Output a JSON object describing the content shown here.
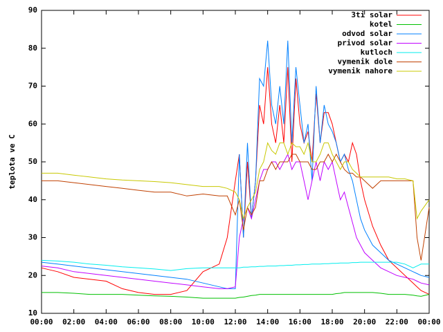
{
  "chart_data": {
    "type": "line",
    "ylabel": "teplota ve C",
    "x": [
      0,
      1,
      2,
      3,
      4,
      5,
      6,
      7,
      8,
      9,
      10,
      11,
      11.5,
      12,
      12.25,
      12.5,
      12.75,
      13,
      13.25,
      13.5,
      13.75,
      14,
      14.25,
      14.5,
      14.75,
      15,
      15.25,
      15.5,
      15.75,
      16,
      16.25,
      16.5,
      16.75,
      17,
      17.25,
      17.5,
      17.75,
      18,
      18.25,
      18.5,
      18.75,
      19,
      19.25,
      19.5,
      19.75,
      20,
      20.5,
      21,
      21.5,
      22,
      22.5,
      23,
      23.25,
      23.5,
      24
    ],
    "series": [
      {
        "name": "3ti solar",
        "color": "#ff0000",
        "values": [
          22,
          21,
          19.5,
          19,
          18.5,
          16.5,
          15.5,
          15,
          15,
          16,
          21,
          23,
          30,
          45,
          52,
          30,
          50,
          35,
          45,
          65,
          60,
          75,
          60,
          55,
          65,
          55,
          75,
          50,
          72,
          60,
          55,
          58,
          50,
          68,
          55,
          63,
          63,
          60,
          55,
          50,
          52,
          50,
          55,
          52,
          45,
          40,
          33,
          28,
          24,
          22,
          20,
          18,
          17,
          16,
          15
        ]
      },
      {
        "name": "kotel",
        "color": "#00c000",
        "values": [
          15.5,
          15.5,
          15.3,
          15,
          15,
          15,
          14.8,
          14.6,
          14.5,
          14.3,
          14,
          14,
          14,
          14,
          14.2,
          14.3,
          14.5,
          14.7,
          14.8,
          15,
          15,
          15,
          15,
          15,
          15,
          15,
          15,
          15,
          15,
          15,
          15,
          15,
          15,
          15,
          15,
          15,
          15,
          15,
          15.2,
          15.3,
          15.5,
          15.5,
          15.5,
          15.5,
          15.5,
          15.5,
          15.5,
          15.3,
          15,
          15,
          15,
          14.8,
          14.6,
          14.5,
          15
        ]
      },
      {
        "name": "odvod solar",
        "color": "#0080ff",
        "values": [
          23.5,
          23,
          22.5,
          22,
          21.5,
          21,
          20.5,
          20,
          19.5,
          19,
          18,
          17,
          16.5,
          16.5,
          52,
          30,
          55,
          35,
          45,
          72,
          70,
          82,
          65,
          60,
          70,
          60,
          82,
          55,
          75,
          65,
          55,
          60,
          45,
          70,
          55,
          65,
          60,
          58,
          55,
          50,
          52,
          48,
          45,
          40,
          35,
          32,
          28,
          26,
          24,
          23,
          22,
          21,
          20.5,
          20,
          19.5
        ]
      },
      {
        "name": "privod solar",
        "color": "#c000ff",
        "values": [
          22.5,
          22,
          21,
          20.5,
          20,
          19.5,
          19,
          18.5,
          18,
          17.5,
          17,
          16.5,
          16.5,
          17,
          30,
          35,
          38,
          35,
          40,
          45,
          48,
          48,
          50,
          50,
          48,
          50,
          52,
          48,
          50,
          50,
          45,
          40,
          45,
          50,
          45,
          50,
          48,
          50,
          45,
          40,
          42,
          38,
          34,
          30,
          28,
          26,
          24,
          22,
          21,
          20,
          19.5,
          19,
          18.5,
          18,
          17.5
        ]
      },
      {
        "name": "kutloch",
        "color": "#00eeee",
        "values": [
          24,
          23.8,
          23.5,
          23,
          22.7,
          22.3,
          22,
          21.7,
          21.3,
          21.8,
          22,
          22,
          22,
          22,
          22,
          22.2,
          22.2,
          22.3,
          22.3,
          22.4,
          22.4,
          22.5,
          22.5,
          22.5,
          22.6,
          22.6,
          22.7,
          22.7,
          22.8,
          22.8,
          22.9,
          22.9,
          23,
          23,
          23,
          23.1,
          23.1,
          23.2,
          23.2,
          23.3,
          23.3,
          23.3,
          23.4,
          23.4,
          23.5,
          23.5,
          23.5,
          23.5,
          23.5,
          23.5,
          23,
          22,
          22.5,
          23,
          23
        ]
      },
      {
        "name": "vymenik dole",
        "color": "#c04000",
        "values": [
          45,
          45,
          44.5,
          44,
          43.5,
          43,
          42.5,
          42,
          42,
          41,
          41.5,
          41,
          41,
          36,
          40,
          32,
          38,
          36,
          38,
          45,
          45,
          48,
          50,
          48,
          50,
          50,
          50,
          52,
          52,
          50,
          50,
          50,
          48,
          48,
          50,
          50,
          52,
          50,
          52,
          50,
          48,
          47,
          47,
          46,
          46,
          45,
          43,
          45,
          45,
          45,
          45,
          45,
          30,
          24,
          38
        ]
      },
      {
        "name": "vymenik nahore",
        "color": "#c8c800",
        "values": [
          47,
          47,
          46.5,
          46,
          45.5,
          45.2,
          45,
          44.8,
          44.5,
          44,
          43.5,
          43.5,
          43,
          42,
          40,
          35,
          38,
          40,
          42,
          48,
          50,
          55,
          53,
          52,
          55,
          55,
          52,
          55,
          54,
          54,
          52,
          55,
          50,
          50,
          52,
          55,
          55,
          52,
          50,
          48,
          50,
          50,
          48,
          47,
          46,
          46,
          46,
          46,
          46,
          45.5,
          45.5,
          45,
          35,
          37,
          40
        ]
      }
    ],
    "xlim": [
      0,
      24
    ],
    "xticks": [
      {
        "value": 0,
        "label": "00:00"
      },
      {
        "value": 2,
        "label": "02:00"
      },
      {
        "value": 4,
        "label": "04:00"
      },
      {
        "value": 6,
        "label": "06:00"
      },
      {
        "value": 8,
        "label": "08:00"
      },
      {
        "value": 10,
        "label": "10:00"
      },
      {
        "value": 12,
        "label": "12:00"
      },
      {
        "value": 14,
        "label": "14:00"
      },
      {
        "value": 16,
        "label": "16:00"
      },
      {
        "value": 18,
        "label": "18:00"
      },
      {
        "value": 20,
        "label": "20:00"
      },
      {
        "value": 22,
        "label": "22:00"
      },
      {
        "value": 24,
        "label": "00:00"
      }
    ],
    "ylim": [
      10,
      90
    ],
    "yticks": [
      10,
      20,
      30,
      40,
      50,
      60,
      70,
      80,
      90
    ],
    "legend": "upper right"
  }
}
